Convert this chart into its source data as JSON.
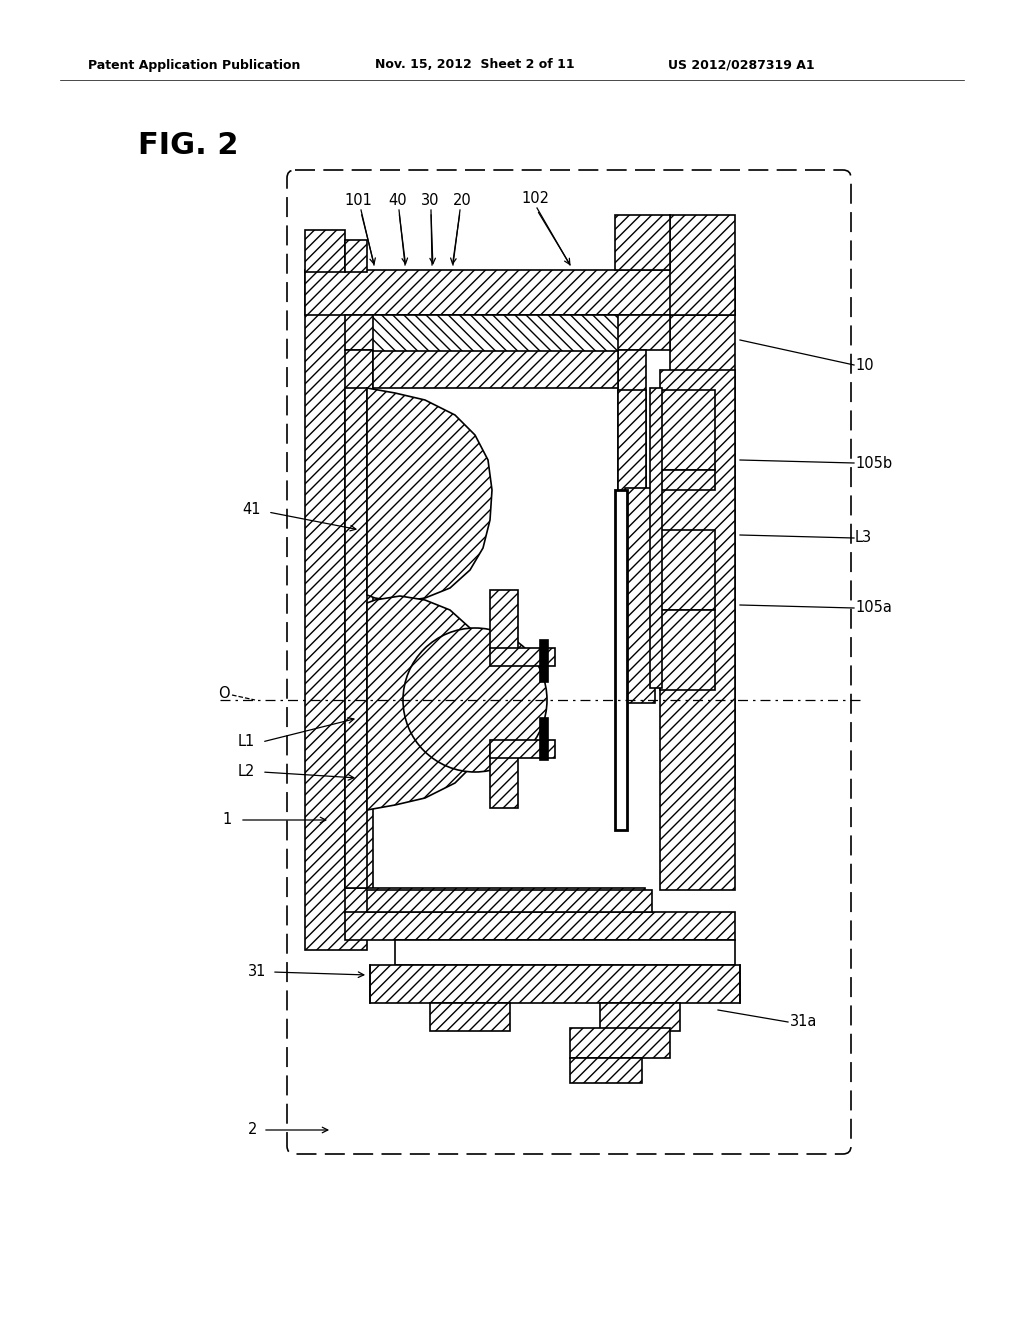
{
  "header_left": "Patent Application Publication",
  "header_mid": "Nov. 15, 2012  Sheet 2 of 11",
  "header_right": "US 2012/0287319 A1",
  "fig_label": "FIG. 2",
  "bg_color": "#ffffff"
}
